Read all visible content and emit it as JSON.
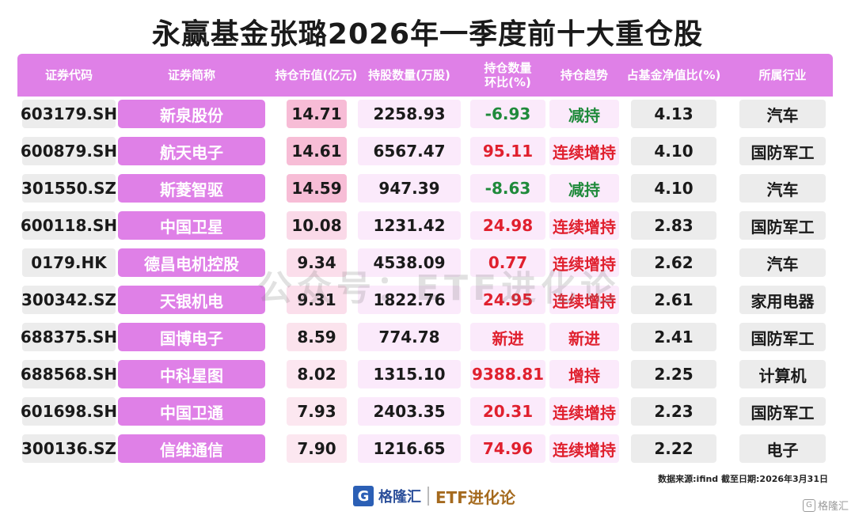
{
  "title": "永赢基金张璐2026年一季度前十大重仓股",
  "headers": {
    "code": "证券代码",
    "name": "证券简称",
    "value": "持仓市值(亿元)",
    "shares": "持股数量(万股)",
    "change_line1": "持仓数量",
    "change_line2": "环比(%)",
    "trend": "持仓趋势",
    "pct": "占基金净值比(%)",
    "industry": "所属行业"
  },
  "rows": [
    {
      "code": "603179.SH",
      "name": "新泉股份",
      "value": "14.71",
      "shares": "2258.93",
      "change": "-6.93",
      "trend": "减持",
      "pct": "4.13",
      "industry": "汽车"
    },
    {
      "code": "600879.SH",
      "name": "航天电子",
      "value": "14.61",
      "shares": "6567.47",
      "change": "95.11",
      "trend": "连续增持",
      "pct": "4.10",
      "industry": "国防军工"
    },
    {
      "code": "301550.SZ",
      "name": "斯菱智驱",
      "value": "14.59",
      "shares": "947.39",
      "change": "-8.63",
      "trend": "减持",
      "pct": "4.10",
      "industry": "汽车"
    },
    {
      "code": "600118.SH",
      "name": "中国卫星",
      "value": "10.08",
      "shares": "1231.42",
      "change": "24.98",
      "trend": "连续增持",
      "pct": "2.83",
      "industry": "国防军工"
    },
    {
      "code": "0179.HK",
      "name": "德昌电机控股",
      "value": "9.34",
      "shares": "4538.09",
      "change": "0.77",
      "trend": "连续增持",
      "pct": "2.62",
      "industry": "汽车"
    },
    {
      "code": "300342.SZ",
      "name": "天银机电",
      "value": "9.31",
      "shares": "1822.76",
      "change": "24.95",
      "trend": "连续增持",
      "pct": "2.61",
      "industry": "家用电器"
    },
    {
      "code": "688375.SH",
      "name": "国博电子",
      "value": "8.59",
      "shares": "774.78",
      "change": "新进",
      "trend": "新进",
      "pct": "2.41",
      "industry": "国防军工"
    },
    {
      "code": "688568.SH",
      "name": "中科星图",
      "value": "8.02",
      "shares": "1315.10",
      "change": "9388.81",
      "trend": "增持",
      "pct": "2.25",
      "industry": "计算机"
    },
    {
      "code": "601698.SH",
      "name": "中国卫通",
      "value": "7.93",
      "shares": "2403.35",
      "change": "20.31",
      "trend": "连续增持",
      "pct": "2.23",
      "industry": "国防军工"
    },
    {
      "code": "300136.SZ",
      "name": "信维通信",
      "value": "7.90",
      "shares": "1216.65",
      "change": "74.96",
      "trend": "连续增持",
      "pct": "2.22",
      "industry": "电子"
    }
  ],
  "colors": {
    "header_bg": "#df80e7",
    "increase": "#e0202e",
    "decrease": "#1f8a3b",
    "value_heat_high": "#f7bcd6",
    "value_heat_low": "#fce7f0"
  },
  "watermark": "公众号：ETF进化论",
  "source": "数据来源:ifind 截至日期:2026年3月31日",
  "footer": {
    "logo_letter": "G",
    "brand": "格隆汇",
    "etf": "ETF进化论",
    "corner_text": "格隆汇"
  }
}
